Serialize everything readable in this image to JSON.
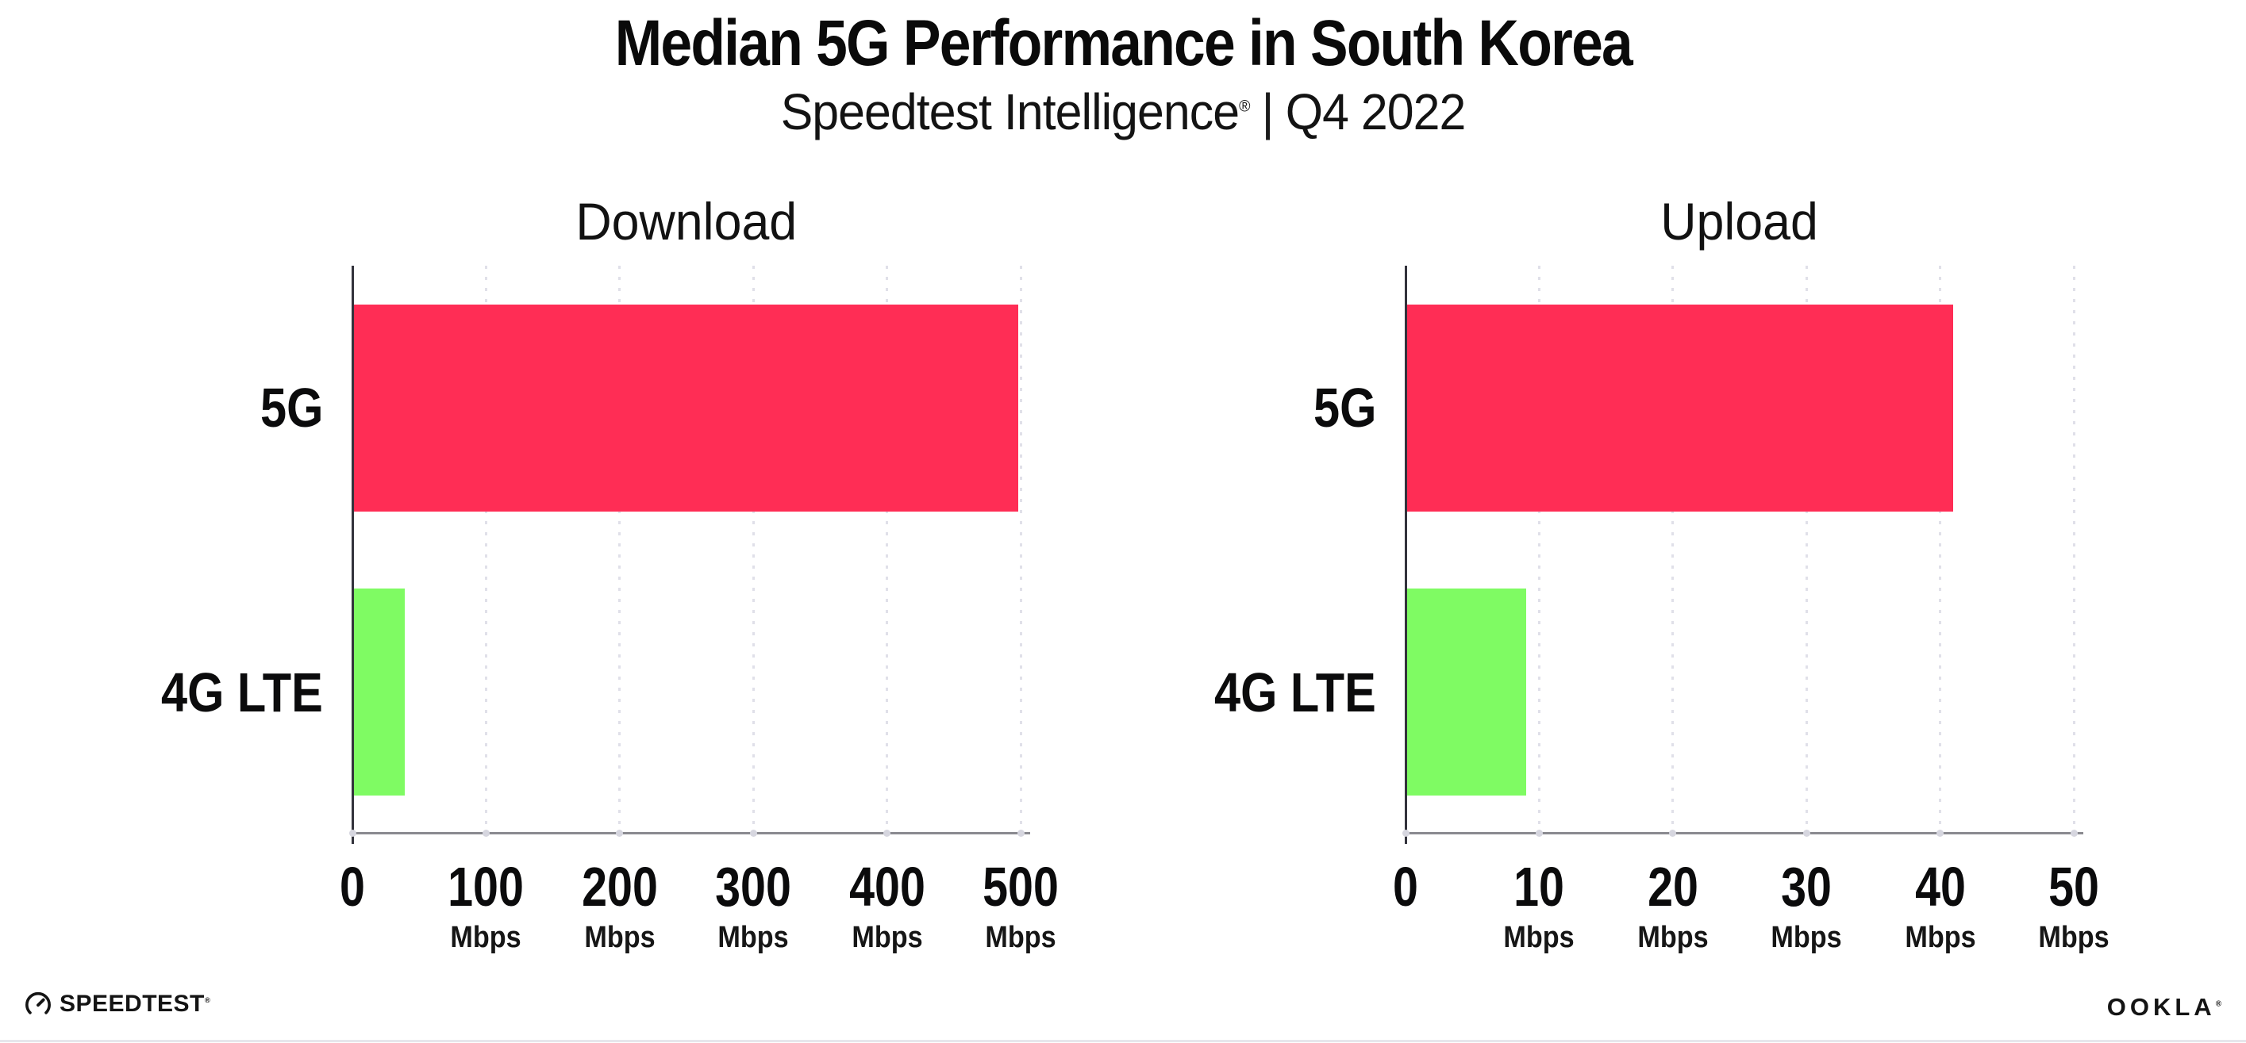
{
  "header": {
    "title": "Median 5G Performance in South Korea",
    "subtitle_brand": "Speedtest Intelligence",
    "subtitle_reg": "®",
    "subtitle_divider": "|",
    "subtitle_period": "Q4 2022"
  },
  "footer": {
    "speedtest_logo_text": "SPEEDTEST",
    "speedtest_reg": "®",
    "ookla_logo_text": "OOKLA",
    "ookla_reg": "®"
  },
  "colors": {
    "bar_5g": "#FF2D55",
    "bar_4g_lte": "#7FFB63",
    "x_axis_line": "#8A8A90",
    "y_axis_line": "#33333C",
    "gridline_dots": "#E0E0E9",
    "axis_tick_dots": "#D6D6DF",
    "text": "#0B0B0C"
  },
  "chart_data": [
    {
      "type": "bar",
      "orientation": "horizontal",
      "title": "Download",
      "categories": [
        "5G",
        "4G LTE"
      ],
      "values": [
        498,
        39
      ],
      "unit": "Mbps",
      "xlim": [
        0,
        500
      ],
      "xticks": [
        0,
        100,
        200,
        300,
        400,
        500
      ],
      "grid": "vertical-dotted",
      "legend": "none",
      "bar_colors": [
        "#FF2D55",
        "#7FFB63"
      ]
    },
    {
      "type": "bar",
      "orientation": "horizontal",
      "title": "Upload",
      "categories": [
        "5G",
        "4G LTE"
      ],
      "values": [
        41,
        9
      ],
      "unit": "Mbps",
      "xlim": [
        0,
        50
      ],
      "xticks": [
        0,
        10,
        20,
        30,
        40,
        50
      ],
      "grid": "vertical-dotted",
      "legend": "none",
      "bar_colors": [
        "#FF2D55",
        "#7FFB63"
      ]
    }
  ]
}
